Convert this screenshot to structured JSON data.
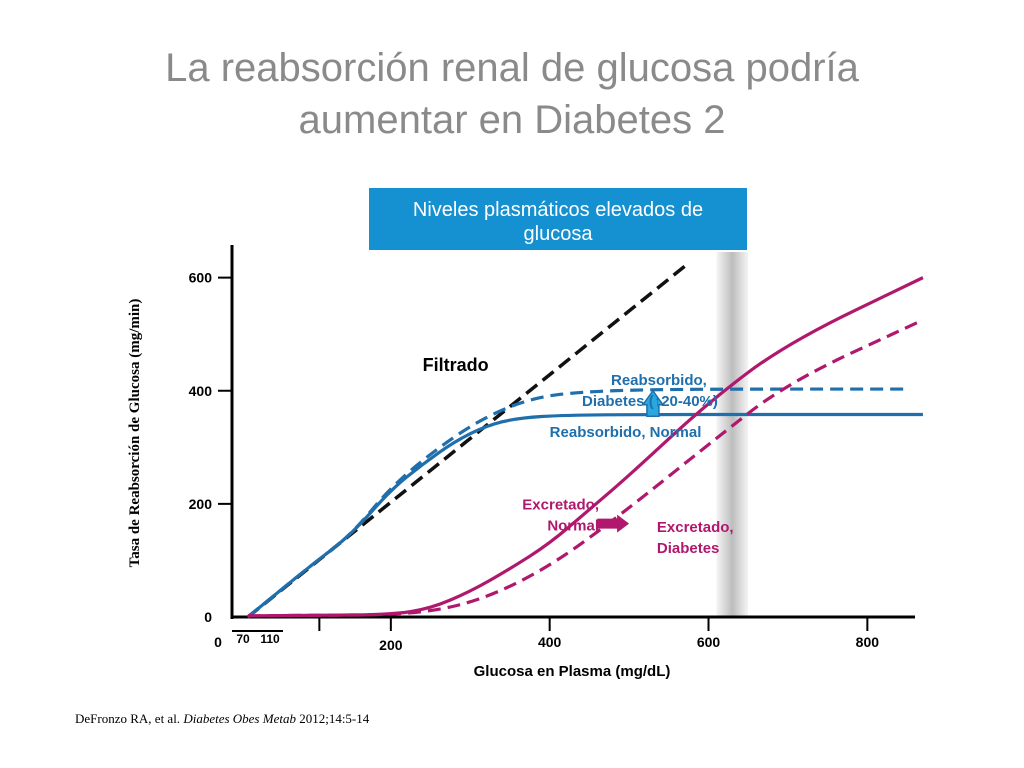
{
  "slide": {
    "title_line1": "La reabsorción renal de glucosa podría",
    "title_line2": "aumentar en Diabetes 2",
    "citation_authors": "DeFronzo RA, et al. ",
    "citation_journal": "Diabetes Obes Metab",
    "citation_rest": " 2012;14:5-14"
  },
  "colors": {
    "title": "#8a8a8a",
    "filtered": "#111111",
    "reabsorbed": "#1f6fad",
    "excreted": "#b0186e",
    "banner": "#1590d0",
    "shade": "#bdbdbd"
  },
  "chart_data": {
    "type": "line",
    "banner": "Niveles plasmáticos elevados de\nglucosa",
    "xlabel": "Glucosa en Plasma (mg/dL)",
    "ylabel": "Tasa de Reabsorción de Glucosa (mg/min)",
    "xlim": [
      0,
      860
    ],
    "ylim": [
      0,
      640
    ],
    "x_ticks": [
      {
        "value": 0,
        "label": "0"
      },
      {
        "value": 70,
        "label": "70"
      },
      {
        "value": 110,
        "label": "110"
      },
      {
        "value": 200,
        "label": "200"
      },
      {
        "value": 400,
        "label": "400"
      },
      {
        "value": 600,
        "label": "600"
      },
      {
        "value": 800,
        "label": "800"
      }
    ],
    "y_ticks": [
      {
        "value": 0,
        "label": "0"
      },
      {
        "value": 200,
        "label": "200"
      },
      {
        "value": 400,
        "label": "400"
      },
      {
        "value": 600,
        "label": "600"
      }
    ],
    "x_minor_ticks": [
      70,
      110,
      200
    ],
    "series": [
      {
        "name": "Filtrado",
        "style": "dashed",
        "color": "#111111",
        "points": [
          [
            20,
            0
          ],
          [
            570,
            620
          ]
        ]
      },
      {
        "name": "Reabsorbido, Normal",
        "style": "solid",
        "color": "#1f6fad",
        "points": [
          [
            20,
            0
          ],
          [
            100,
            92
          ],
          [
            150,
            145
          ],
          [
            200,
            225
          ],
          [
            240,
            270
          ],
          [
            280,
            310
          ],
          [
            320,
            338
          ],
          [
            360,
            352
          ],
          [
            420,
            357
          ],
          [
            520,
            358
          ],
          [
            650,
            358
          ],
          [
            870,
            358
          ]
        ]
      },
      {
        "name": "Reabsorbido, Diabetes",
        "style": "dashed",
        "color": "#1f6fad",
        "points": [
          [
            20,
            0
          ],
          [
            100,
            92
          ],
          [
            150,
            145
          ],
          [
            200,
            230
          ],
          [
            260,
            300
          ],
          [
            320,
            355
          ],
          [
            380,
            388
          ],
          [
            440,
            398
          ],
          [
            520,
            402
          ],
          [
            650,
            403
          ],
          [
            850,
            403
          ]
        ]
      },
      {
        "name": "Excretado, Normal",
        "style": "solid",
        "color": "#b0186e",
        "points": [
          [
            20,
            2
          ],
          [
            100,
            3
          ],
          [
            200,
            4
          ],
          [
            250,
            15
          ],
          [
            300,
            45
          ],
          [
            350,
            85
          ],
          [
            400,
            130
          ],
          [
            450,
            190
          ],
          [
            500,
            250
          ],
          [
            600,
            380
          ],
          [
            700,
            485
          ],
          [
            870,
            600
          ]
        ]
      },
      {
        "name": "Excretado, Diabetes",
        "style": "dashed",
        "color": "#b0186e",
        "points": [
          [
            20,
            2
          ],
          [
            100,
            3
          ],
          [
            200,
            4
          ],
          [
            260,
            12
          ],
          [
            310,
            30
          ],
          [
            360,
            60
          ],
          [
            410,
            100
          ],
          [
            460,
            150
          ],
          [
            520,
            215
          ],
          [
            600,
            305
          ],
          [
            700,
            415
          ],
          [
            870,
            525
          ]
        ]
      }
    ],
    "annotations": [
      {
        "text": "Filtrado",
        "x": 240,
        "y": 435
      },
      {
        "text": "Reabsorbido,\nDiabetes (↑20-40%)",
        "x": 455,
        "y": 410
      },
      {
        "text": "Reabsorbido, Normal",
        "x": 400,
        "y": 318
      },
      {
        "text": "Excretado,\nNormal",
        "x": 360,
        "y": 190
      },
      {
        "text": "Excretado,\nDiabetes",
        "x": 535,
        "y": 150
      }
    ],
    "shaded_band": {
      "x_from": 610,
      "x_to": 650
    },
    "arrows": [
      {
        "type": "up",
        "x": 530,
        "y_from": 355,
        "y_to": 400
      },
      {
        "type": "right",
        "x_from": 460,
        "x_to": 500,
        "y": 165
      }
    ],
    "grid": false,
    "legend": "none"
  }
}
